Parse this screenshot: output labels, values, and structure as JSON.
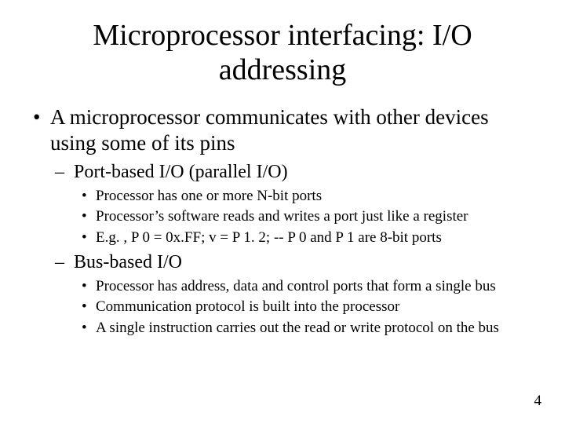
{
  "title": "Microprocessor interfacing: I/O addressing",
  "page_number": "4",
  "background_color": "#ffffff",
  "text_color": "#000000",
  "font_family": "Times New Roman",
  "bullets": {
    "l1_0": "A microprocessor communicates with other devices using some of its pins",
    "l2_0": "Port-based I/O (parallel I/O)",
    "l3_0": "Processor has one or more N-bit ports",
    "l3_1": "Processor’s software reads and writes a port just like a register",
    "l3_2": "E.g. , P 0 = 0x.FF;  v = P 1. 2;  -- P 0 and P 1 are 8-bit ports",
    "l2_1": "Bus-based I/O",
    "l3_3": "Processor has address, data and control ports that form a single bus",
    "l3_4": "Communication protocol is built into the processor",
    "l3_5": "A single instruction carries out the read or write protocol on the bus"
  },
  "typography": {
    "title_fontsize": 38,
    "level1_fontsize": 27,
    "level2_fontsize": 24,
    "level3_fontsize": 19,
    "pagenum_fontsize": 19
  }
}
